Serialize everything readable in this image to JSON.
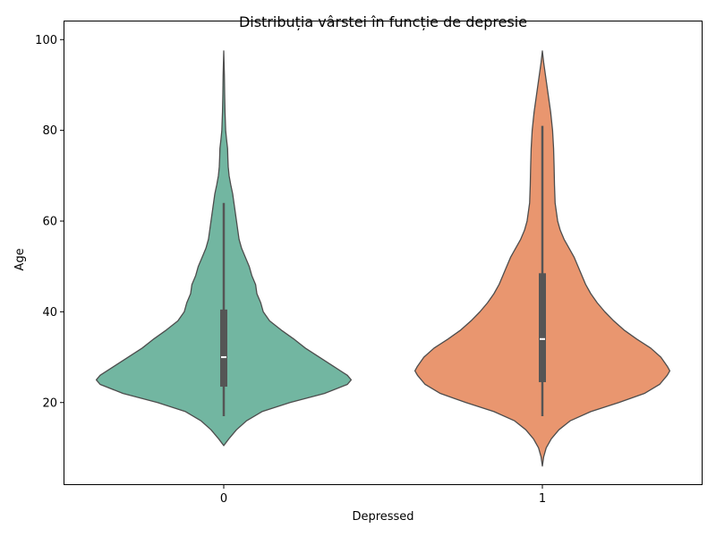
{
  "chart_data": {
    "type": "violin",
    "title": "Distribuția vârstei în funcție de depresie",
    "xlabel": "Depressed",
    "ylabel": "Age",
    "categories": [
      "0",
      "1"
    ],
    "ylim": [
      2,
      104
    ],
    "yticks": [
      20,
      40,
      60,
      80,
      100
    ],
    "grid": false,
    "violins": [
      {
        "category": "0",
        "color": "#72b6a1",
        "min": 17,
        "q1": 23.5,
        "median": 30,
        "q3": 40.5,
        "max": 64,
        "kde_min": 10.5,
        "kde_max": 97.5,
        "profile": [
          [
            10.5,
            0.0
          ],
          [
            12,
            0.04
          ],
          [
            14,
            0.1
          ],
          [
            16,
            0.18
          ],
          [
            18,
            0.3
          ],
          [
            20,
            0.52
          ],
          [
            22,
            0.79
          ],
          [
            24,
            0.97
          ],
          [
            25,
            1.0
          ],
          [
            26,
            0.97
          ],
          [
            28,
            0.86
          ],
          [
            30,
            0.75
          ],
          [
            32,
            0.64
          ],
          [
            34,
            0.55
          ],
          [
            36,
            0.45
          ],
          [
            38,
            0.36
          ],
          [
            40,
            0.31
          ],
          [
            42,
            0.29
          ],
          [
            44,
            0.26
          ],
          [
            46,
            0.25
          ],
          [
            48,
            0.22
          ],
          [
            50,
            0.2
          ],
          [
            52,
            0.17
          ],
          [
            54,
            0.14
          ],
          [
            56,
            0.12
          ],
          [
            58,
            0.11
          ],
          [
            60,
            0.1
          ],
          [
            62,
            0.09
          ],
          [
            64,
            0.08
          ],
          [
            66,
            0.07
          ],
          [
            68,
            0.055
          ],
          [
            70,
            0.042
          ],
          [
            72,
            0.035
          ],
          [
            74,
            0.032
          ],
          [
            76,
            0.03
          ],
          [
            78,
            0.022
          ],
          [
            80,
            0.015
          ],
          [
            84,
            0.01
          ],
          [
            88,
            0.007
          ],
          [
            92,
            0.005
          ],
          [
            97.5,
            0.0
          ]
        ]
      },
      {
        "category": "1",
        "color": "#e9966f",
        "min": 17,
        "q1": 24.5,
        "median": 34,
        "q3": 48.5,
        "max": 81,
        "kde_min": 6,
        "kde_max": 97.5,
        "profile": [
          [
            6,
            0.0
          ],
          [
            8,
            0.01
          ],
          [
            10,
            0.03
          ],
          [
            12,
            0.07
          ],
          [
            14,
            0.13
          ],
          [
            16,
            0.22
          ],
          [
            18,
            0.38
          ],
          [
            20,
            0.6
          ],
          [
            22,
            0.8
          ],
          [
            24,
            0.92
          ],
          [
            26,
            0.98
          ],
          [
            27,
            1.0
          ],
          [
            28,
            0.98
          ],
          [
            30,
            0.93
          ],
          [
            32,
            0.85
          ],
          [
            34,
            0.74
          ],
          [
            36,
            0.64
          ],
          [
            38,
            0.56
          ],
          [
            40,
            0.49
          ],
          [
            42,
            0.43
          ],
          [
            44,
            0.38
          ],
          [
            46,
            0.34
          ],
          [
            48,
            0.31
          ],
          [
            50,
            0.28
          ],
          [
            52,
            0.25
          ],
          [
            54,
            0.21
          ],
          [
            56,
            0.17
          ],
          [
            58,
            0.14
          ],
          [
            60,
            0.12
          ],
          [
            62,
            0.11
          ],
          [
            64,
            0.1
          ],
          [
            68,
            0.095
          ],
          [
            72,
            0.092
          ],
          [
            76,
            0.088
          ],
          [
            80,
            0.08
          ],
          [
            84,
            0.065
          ],
          [
            88,
            0.045
          ],
          [
            92,
            0.025
          ],
          [
            95,
            0.01
          ],
          [
            97.5,
            0.0
          ]
        ]
      }
    ]
  }
}
